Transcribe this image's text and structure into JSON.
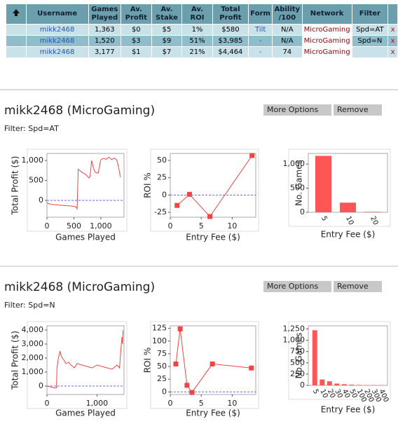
{
  "table": {
    "headers": [
      "Username",
      "Games Played",
      "Av. Profit",
      "Av. Stake",
      "Av. ROI",
      "Total Profit",
      "Form",
      "Ability /100",
      "Network",
      "Filter"
    ],
    "rows": [
      [
        "mikk2468",
        "1,363",
        "$0",
        "$5",
        "1%",
        "$580",
        "Tilt",
        "N/A",
        "MicroGaming",
        "Spd=AT",
        "x"
      ],
      [
        "mikk2468",
        "1,520",
        "$3",
        "$9",
        "51%",
        "$3,985",
        "-",
        "N/A",
        "MicroGaming",
        "Spd=N",
        "x"
      ],
      [
        "mikk2468",
        "3,177",
        "$1",
        "$7",
        "21%",
        "$4,464",
        "-",
        "74",
        "MicroGaming",
        null,
        "x"
      ]
    ]
  },
  "panels": [
    {
      "title": "mikk2468 (MicroGaming)",
      "buttons": [
        "More Options",
        "Remove"
      ],
      "filter": "Filter: Spd=AT"
    },
    {
      "title": "mikk2468 (MicroGaming)",
      "buttons": [
        "More Options",
        "Remove"
      ],
      "filter": "Filter: Spd=N"
    }
  ],
  "chart_data": [
    {
      "type": "line",
      "xlabel": "Games Played",
      "ylabel": "Total Profit ($)",
      "color": "#ee4444",
      "reference_line": 0,
      "x": [
        0,
        50,
        150,
        250,
        350,
        450,
        540,
        560,
        580,
        650,
        720,
        780,
        800,
        830,
        870,
        900,
        950,
        1000,
        1050,
        1100,
        1150,
        1200,
        1250,
        1300,
        1340,
        1363
      ],
      "values": [
        -60,
        -90,
        -110,
        -120,
        -130,
        -140,
        -160,
        -210,
        780,
        700,
        650,
        560,
        600,
        1000,
        780,
        700,
        680,
        1020,
        1050,
        1030,
        1080,
        1020,
        1060,
        1000,
        750,
        580
      ],
      "xlim": [
        0,
        1430
      ],
      "ylim": [
        -420,
        1175
      ],
      "xticks": [
        0,
        500,
        {
          "value": 1000,
          "label": "1,000"
        }
      ],
      "yticks": [
        0,
        500,
        {
          "value": 1000,
          "label": "1,000"
        }
      ]
    },
    {
      "type": "line",
      "markers": true,
      "xlabel": "Entry Fee ($)",
      "ylabel": "ROI %",
      "color": "#ee4444",
      "reference_line": 0,
      "x": [
        1.1,
        3.1,
        6.4,
        13.2
      ],
      "values": [
        -15,
        1,
        -31,
        57
      ],
      "xlim": [
        0,
        13.8
      ],
      "ylim": [
        -32,
        60
      ],
      "xticks": [
        0,
        5,
        10
      ],
      "yticks": [
        -25,
        0,
        25,
        50
      ]
    },
    {
      "type": "bar",
      "xlabel": "Entry Fee ($)",
      "ylabel": "No. Games",
      "color": "#ff5555",
      "categories": [
        "5",
        "10",
        "20"
      ],
      "values": [
        1170,
        200,
        10
      ],
      "ylim": [
        0,
        1220
      ],
      "yticks": [
        0,
        500,
        {
          "value": 1000,
          "label": "1,000"
        }
      ]
    },
    {
      "type": "line",
      "xlabel": "Games Played",
      "ylabel": "Total Profit ($)",
      "color": "#ee4444",
      "reference_line": 0,
      "x": [
        0,
        60,
        120,
        170,
        190,
        200,
        230,
        260,
        290,
        330,
        380,
        430,
        480,
        550,
        600,
        700,
        800,
        900,
        1000,
        1100,
        1200,
        1300,
        1400,
        1450,
        1480,
        1500,
        1510,
        1520
      ],
      "values": [
        0,
        -50,
        -100,
        -150,
        -120,
        1300,
        2000,
        2500,
        2100,
        1900,
        1600,
        1700,
        1500,
        1300,
        1600,
        1500,
        1400,
        1300,
        1500,
        1400,
        1300,
        1200,
        1500,
        1300,
        2700,
        3500,
        3000,
        3985
      ],
      "xlim": [
        0,
        1540
      ],
      "ylim": [
        -600,
        4300
      ],
      "xticks": [
        0,
        {
          "value": 1000,
          "label": "1,000"
        }
      ],
      "yticks": [
        0,
        {
          "value": 1000,
          "label": "1,000"
        },
        {
          "value": 2000,
          "label": "2,000"
        },
        {
          "value": 3000,
          "label": "3,000"
        },
        {
          "value": 4000,
          "label": "4,000"
        }
      ]
    },
    {
      "type": "line",
      "markers": true,
      "xlabel": "Entry Fee ($)",
      "ylabel": "ROI %",
      "color": "#ee4444",
      "reference_line": 0,
      "x": [
        0.9,
        1.6,
        2.7,
        3.5,
        6.8,
        13.1
      ],
      "values": [
        55,
        124,
        13,
        -1,
        55,
        47
      ],
      "xlim": [
        0,
        13.8
      ],
      "ylim": [
        -5,
        130
      ],
      "xticks": [
        0,
        5,
        10
      ],
      "yticks": [
        0,
        25,
        50,
        75,
        100,
        125
      ]
    },
    {
      "type": "bar",
      "xlabel": "Entry Fee ($)",
      "ylabel": "No. Games",
      "color": "#ff5555",
      "categories": [
        "5",
        "10",
        "20",
        "30",
        "40",
        "50",
        "100",
        "200",
        "300",
        "400"
      ],
      "values": [
        1222,
        130,
        90,
        40,
        25,
        15,
        10,
        5,
        5,
        5
      ],
      "ylim": [
        0,
        1320
      ],
      "yticks": [
        0,
        250,
        500,
        750,
        {
          "value": 1000,
          "label": "1,000"
        },
        {
          "value": 1250,
          "label": "1,250"
        }
      ]
    }
  ]
}
